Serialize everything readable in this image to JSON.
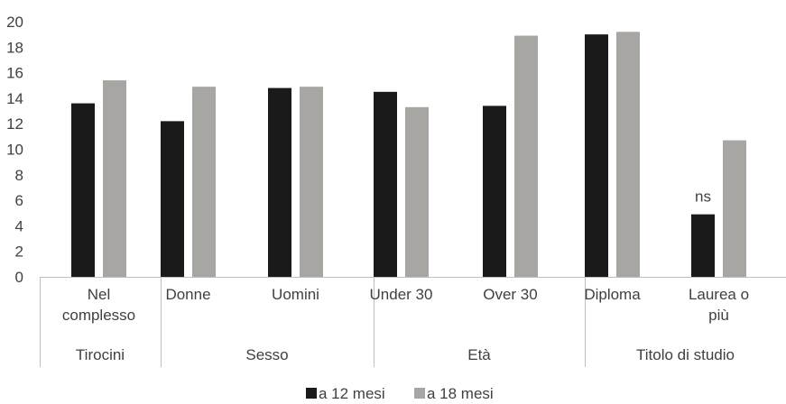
{
  "chart_data": {
    "type": "bar",
    "ylim": [
      0,
      20
    ],
    "yticks": [
      "0",
      "2",
      "4",
      "6",
      "8",
      "10",
      "12",
      "14",
      "16",
      "18",
      "20"
    ],
    "groups": [
      {
        "label": "Tirocini",
        "categories": [
          {
            "lines": [
              "Nel",
              "complesso"
            ]
          }
        ]
      },
      {
        "label": "Sesso",
        "categories": [
          {
            "lines": [
              "Donne"
            ]
          },
          {
            "lines": [
              "Uomini"
            ]
          }
        ]
      },
      {
        "label": "Età",
        "categories": [
          {
            "lines": [
              "Under 30"
            ]
          },
          {
            "lines": [
              "Over 30"
            ]
          }
        ]
      },
      {
        "label": "Titolo di studio",
        "categories": [
          {
            "lines": [
              "Diploma"
            ]
          },
          {
            "lines": [
              "Laurea o",
              "più"
            ]
          }
        ]
      }
    ],
    "series": [
      {
        "name": "a 12 mesi",
        "color": "#1a1a1a",
        "values": [
          13.6,
          12.2,
          14.8,
          14.5,
          13.4,
          19.0,
          4.9
        ]
      },
      {
        "name": "a 18 mesi",
        "color": "#a8a6a3",
        "values": [
          15.4,
          14.9,
          14.9,
          13.3,
          18.9,
          19.2,
          10.7
        ]
      }
    ],
    "annotations": [
      {
        "series": 0,
        "index": 6,
        "text": "ns"
      }
    ],
    "legend_position": "bottom",
    "grid": false
  }
}
